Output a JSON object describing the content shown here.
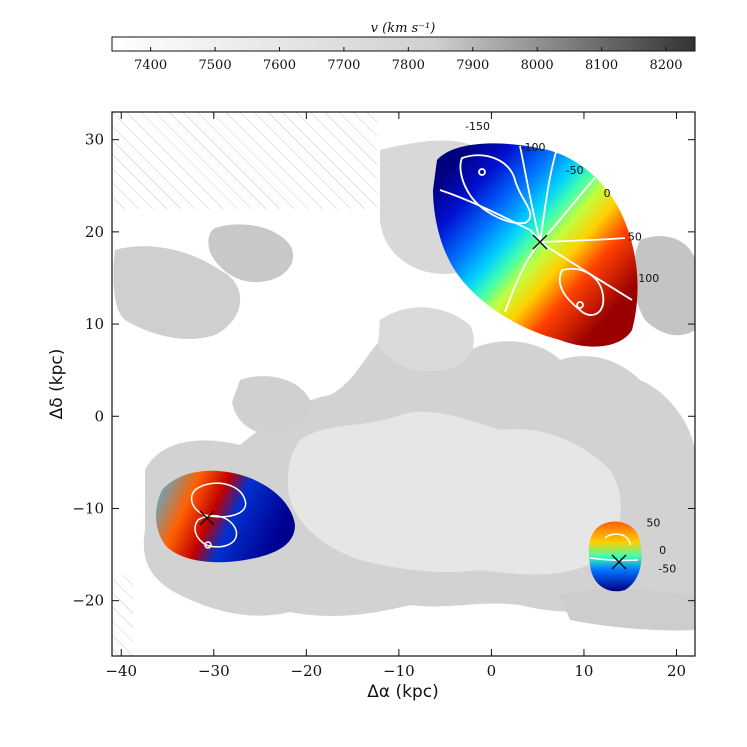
{
  "chart_data": {
    "type": "heatmap",
    "title": "",
    "xlabel": "Δα (kpc)",
    "ylabel": "Δδ (kpc)",
    "xlim": [
      -41,
      22
    ],
    "ylim": [
      -26,
      33
    ],
    "x_ticks": [
      -40,
      -30,
      -20,
      -10,
      0,
      10,
      20
    ],
    "x_tick_labels": [
      "−40",
      "−30",
      "−20",
      "−10",
      "0",
      "10",
      "20"
    ],
    "y_ticks": [
      -20,
      -10,
      0,
      10,
      20,
      30
    ],
    "y_tick_labels": [
      "−20",
      "−10",
      "0",
      "10",
      "20",
      "30"
    ],
    "colorbar": {
      "label": "v (km s⁻¹)",
      "range": [
        7340,
        8245
      ],
      "ticks": [
        7400,
        7500,
        7600,
        7700,
        7800,
        7900,
        8000,
        8100,
        8200
      ],
      "tick_labels": [
        "7400",
        "7500",
        "7600",
        "7700",
        "7800",
        "7900",
        "8000",
        "8100",
        "8200"
      ],
      "colormap": "greys"
    },
    "galaxies": [
      {
        "center": [
          5.5,
          19
        ],
        "contour_levels": [
          "-150",
          "-100",
          "-50",
          "0",
          "50",
          "100"
        ],
        "contour_label_positions": [
          [
            -1.5,
            31.5
          ],
          [
            4.5,
            29.2
          ],
          [
            9,
            26.7
          ],
          [
            12.5,
            24.2
          ],
          [
            15.5,
            19.5
          ],
          [
            17,
            15
          ]
        ]
      },
      {
        "center": [
          -30,
          -11
        ],
        "contour_levels": [],
        "contour_label_positions": []
      },
      {
        "center": [
          13.5,
          -15.5
        ],
        "contour_levels": [
          "50",
          "0",
          "-50"
        ],
        "contour_label_positions": [
          [
            17.5,
            -11.5
          ],
          [
            18.5,
            -14.5
          ],
          [
            19,
            -16.5
          ]
        ]
      }
    ],
    "grid": false
  }
}
